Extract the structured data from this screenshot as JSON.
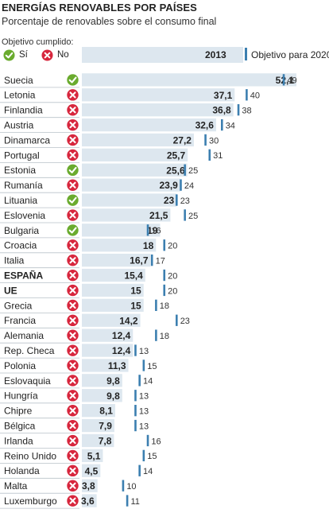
{
  "header": {
    "title": "ENERGÍAS RENOVABLES POR PAÍSES",
    "subtitle": "Porcentaje de renovables sobre el consumo final"
  },
  "legend": {
    "label": "Objetivo cumplido:",
    "yes": "Sí",
    "no": "No",
    "year": "2013",
    "objective": "Objetivo para 2020"
  },
  "colors": {
    "bar": "#dde7ef",
    "target_tick": "#3c7fb0",
    "yes_icon": "#6aab2e",
    "no_icon": "#d7263d"
  },
  "chart_data": {
    "type": "bar",
    "orientation": "horizontal",
    "title": "ENERGÍAS RENOVABLES POR PAÍSES",
    "subtitle": "Porcentaje de renovables sobre el consumo final",
    "series": [
      {
        "name": "2013",
        "values": [
          52.1,
          37.1,
          36.8,
          32.6,
          27.2,
          25.7,
          25.6,
          23.9,
          23,
          21.5,
          19,
          18,
          16.7,
          15.4,
          15,
          15,
          14.2,
          12.4,
          12.4,
          11.3,
          9.8,
          9.8,
          8.1,
          7.9,
          7.8,
          5.1,
          4.5,
          3.8,
          3.6
        ]
      },
      {
        "name": "Objetivo para 2020",
        "values": [
          49,
          40,
          38,
          34,
          30,
          31,
          25,
          24,
          23,
          25,
          16,
          20,
          17,
          20,
          20,
          18,
          23,
          18,
          13,
          15,
          14,
          13,
          13,
          13,
          16,
          15,
          14,
          10,
          11
        ]
      }
    ],
    "categories": [
      "Suecia",
      "Letonia",
      "Finlandia",
      "Austria",
      "Dinamarca",
      "Portugal",
      "Estonia",
      "Rumanía",
      "Lituania",
      "Eslovenia",
      "Bulgaria",
      "Croacia",
      "Italia",
      "ESPAÑA",
      "UE",
      "Grecia",
      "Francia",
      "Alemania",
      "Rep. Checa",
      "Polonia",
      "Eslovaquia",
      "Hungría",
      "Chipre",
      "Bélgica",
      "Irlanda",
      "Reino Unido",
      "Holanda",
      "Malta",
      "Luxemburgo"
    ],
    "value_labels": [
      "52,1",
      "37,1",
      "36,8",
      "32,6",
      "27,2",
      "25,7",
      "25,6",
      "23,9",
      "23",
      "21,5",
      "19",
      "18",
      "16,7",
      "15,4",
      "15",
      "15",
      "14,2",
      "12,4",
      "12,4",
      "11,3",
      "9,8",
      "9,8",
      "8,1",
      "7,9",
      "7,8",
      "5,1",
      "4,5",
      "3,8",
      "3,6"
    ],
    "target_labels": [
      "49",
      "40",
      "38",
      "34",
      "30",
      "31",
      "25",
      "24",
      "23",
      "25",
      "16",
      "20",
      "17",
      "20",
      "20",
      "18",
      "23",
      "18",
      "13",
      "15",
      "14",
      "13",
      "13",
      "13",
      "16",
      "15",
      "14",
      "10",
      "11"
    ],
    "objective_met": [
      true,
      false,
      false,
      false,
      false,
      false,
      true,
      false,
      true,
      false,
      true,
      false,
      false,
      false,
      false,
      false,
      false,
      false,
      false,
      false,
      false,
      false,
      false,
      false,
      false,
      false,
      false,
      false,
      false
    ],
    "bold_categories": [
      "ESPAÑA",
      "UE"
    ],
    "xlim": [
      0,
      53
    ]
  }
}
